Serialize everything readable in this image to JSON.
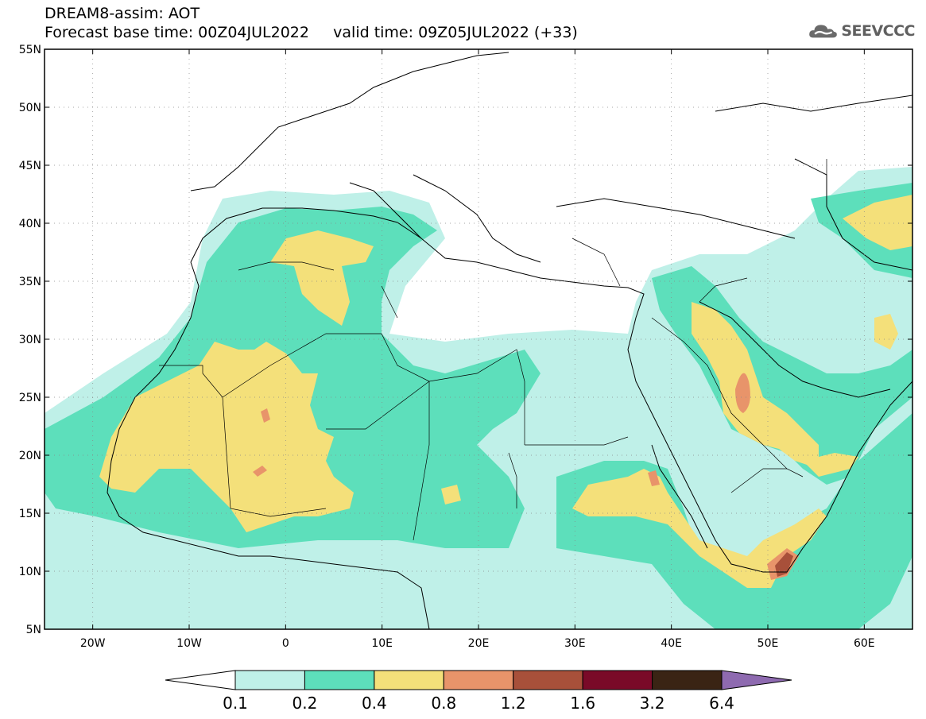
{
  "header": {
    "line1": "DREAM8-assim: AOT",
    "line2": "Forecast base time: 00Z04JUL2022     valid time: 09Z05JUL2022 (+33)"
  },
  "logo": {
    "text": "SEEVCCC",
    "icon": "cloud-icon"
  },
  "map": {
    "lon_range": [
      -25,
      65
    ],
    "lat_range": [
      5,
      55
    ],
    "lat_ticks": [
      "5N",
      "10N",
      "15N",
      "20N",
      "25N",
      "30N",
      "35N",
      "40N",
      "45N",
      "50N",
      "55N"
    ],
    "lon_ticks": [
      "20W",
      "10W",
      "0",
      "10E",
      "20E",
      "30E",
      "40E",
      "50E",
      "60E"
    ]
  },
  "colorbar": {
    "labels": [
      "0.1",
      "0.2",
      "0.4",
      "0.8",
      "1.2",
      "1.6",
      "3.2",
      "6.4"
    ],
    "colors": [
      "#ffffff",
      "#bff0e8",
      "#5ddfbb",
      "#f4e07a",
      "#e8946a",
      "#a8503a",
      "#7a0a28",
      "#3a2414",
      "#8e6ab0"
    ]
  }
}
